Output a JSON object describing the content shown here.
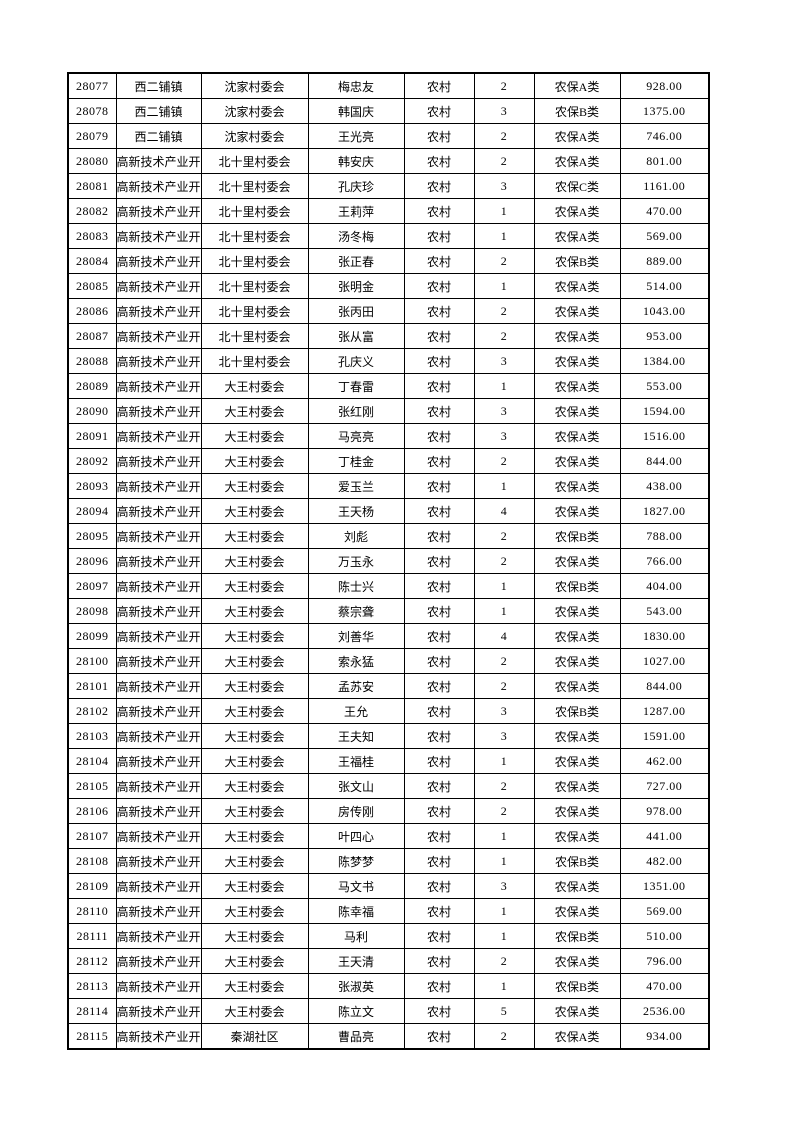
{
  "page": {
    "background": "#ffffff",
    "text_color": "#000000",
    "border_color": "#000000"
  },
  "table": {
    "rows": [
      [
        "28077",
        "西二铺镇",
        "沈家村委会",
        "梅忠友",
        "农村",
        "2",
        "农保A类",
        "928.00"
      ],
      [
        "28078",
        "西二铺镇",
        "沈家村委会",
        "韩国庆",
        "农村",
        "3",
        "农保B类",
        "1375.00"
      ],
      [
        "28079",
        "西二铺镇",
        "沈家村委会",
        "王光亮",
        "农村",
        "2",
        "农保A类",
        "746.00"
      ],
      [
        "28080",
        "高新技术产业开",
        "北十里村委会",
        "韩安庆",
        "农村",
        "2",
        "农保A类",
        "801.00"
      ],
      [
        "28081",
        "高新技术产业开",
        "北十里村委会",
        "孔庆珍",
        "农村",
        "3",
        "农保C类",
        "1161.00"
      ],
      [
        "28082",
        "高新技术产业开",
        "北十里村委会",
        "王莉萍",
        "农村",
        "1",
        "农保A类",
        "470.00"
      ],
      [
        "28083",
        "高新技术产业开",
        "北十里村委会",
        "汤冬梅",
        "农村",
        "1",
        "农保A类",
        "569.00"
      ],
      [
        "28084",
        "高新技术产业开",
        "北十里村委会",
        "张正春",
        "农村",
        "2",
        "农保B类",
        "889.00"
      ],
      [
        "28085",
        "高新技术产业开",
        "北十里村委会",
        "张明金",
        "农村",
        "1",
        "农保A类",
        "514.00"
      ],
      [
        "28086",
        "高新技术产业开",
        "北十里村委会",
        "张丙田",
        "农村",
        "2",
        "农保A类",
        "1043.00"
      ],
      [
        "28087",
        "高新技术产业开",
        "北十里村委会",
        "张从富",
        "农村",
        "2",
        "农保A类",
        "953.00"
      ],
      [
        "28088",
        "高新技术产业开",
        "北十里村委会",
        "孔庆义",
        "农村",
        "3",
        "农保A类",
        "1384.00"
      ],
      [
        "28089",
        "高新技术产业开",
        "大王村委会",
        "丁春雷",
        "农村",
        "1",
        "农保A类",
        "553.00"
      ],
      [
        "28090",
        "高新技术产业开",
        "大王村委会",
        "张红刚",
        "农村",
        "3",
        "农保A类",
        "1594.00"
      ],
      [
        "28091",
        "高新技术产业开",
        "大王村委会",
        "马亮亮",
        "农村",
        "3",
        "农保A类",
        "1516.00"
      ],
      [
        "28092",
        "高新技术产业开",
        "大王村委会",
        "丁桂金",
        "农村",
        "2",
        "农保A类",
        "844.00"
      ],
      [
        "28093",
        "高新技术产业开",
        "大王村委会",
        "爱玉兰",
        "农村",
        "1",
        "农保A类",
        "438.00"
      ],
      [
        "28094",
        "高新技术产业开",
        "大王村委会",
        "王天杨",
        "农村",
        "4",
        "农保A类",
        "1827.00"
      ],
      [
        "28095",
        "高新技术产业开",
        "大王村委会",
        "刘彪",
        "农村",
        "2",
        "农保B类",
        "788.00"
      ],
      [
        "28096",
        "高新技术产业开",
        "大王村委会",
        "万玉永",
        "农村",
        "2",
        "农保A类",
        "766.00"
      ],
      [
        "28097",
        "高新技术产业开",
        "大王村委会",
        "陈士兴",
        "农村",
        "1",
        "农保B类",
        "404.00"
      ],
      [
        "28098",
        "高新技术产业开",
        "大王村委会",
        "蔡宗聋",
        "农村",
        "1",
        "农保A类",
        "543.00"
      ],
      [
        "28099",
        "高新技术产业开",
        "大王村委会",
        "刘善华",
        "农村",
        "4",
        "农保A类",
        "1830.00"
      ],
      [
        "28100",
        "高新技术产业开",
        "大王村委会",
        "索永猛",
        "农村",
        "2",
        "农保A类",
        "1027.00"
      ],
      [
        "28101",
        "高新技术产业开",
        "大王村委会",
        "孟苏安",
        "农村",
        "2",
        "农保A类",
        "844.00"
      ],
      [
        "28102",
        "高新技术产业开",
        "大王村委会",
        "王允",
        "农村",
        "3",
        "农保B类",
        "1287.00"
      ],
      [
        "28103",
        "高新技术产业开",
        "大王村委会",
        "王夫知",
        "农村",
        "3",
        "农保A类",
        "1591.00"
      ],
      [
        "28104",
        "高新技术产业开",
        "大王村委会",
        "王福桂",
        "农村",
        "1",
        "农保A类",
        "462.00"
      ],
      [
        "28105",
        "高新技术产业开",
        "大王村委会",
        "张文山",
        "农村",
        "2",
        "农保A类",
        "727.00"
      ],
      [
        "28106",
        "高新技术产业开",
        "大王村委会",
        "房传刚",
        "农村",
        "2",
        "农保A类",
        "978.00"
      ],
      [
        "28107",
        "高新技术产业开",
        "大王村委会",
        "叶四心",
        "农村",
        "1",
        "农保A类",
        "441.00"
      ],
      [
        "28108",
        "高新技术产业开",
        "大王村委会",
        "陈梦梦",
        "农村",
        "1",
        "农保B类",
        "482.00"
      ],
      [
        "28109",
        "高新技术产业开",
        "大王村委会",
        "马文书",
        "农村",
        "3",
        "农保A类",
        "1351.00"
      ],
      [
        "28110",
        "高新技术产业开",
        "大王村委会",
        "陈幸福",
        "农村",
        "1",
        "农保A类",
        "569.00"
      ],
      [
        "28111",
        "高新技术产业开",
        "大王村委会",
        "马利",
        "农村",
        "1",
        "农保B类",
        "510.00"
      ],
      [
        "28112",
        "高新技术产业开",
        "大王村委会",
        "王天清",
        "农村",
        "2",
        "农保A类",
        "796.00"
      ],
      [
        "28113",
        "高新技术产业开",
        "大王村委会",
        "张淑英",
        "农村",
        "1",
        "农保B类",
        "470.00"
      ],
      [
        "28114",
        "高新技术产业开",
        "大王村委会",
        "陈立文",
        "农村",
        "5",
        "农保A类",
        "2536.00"
      ],
      [
        "28115",
        "高新技术产业开",
        "秦湖社区",
        "曹品亮",
        "农村",
        "2",
        "农保A类",
        "934.00"
      ]
    ]
  }
}
